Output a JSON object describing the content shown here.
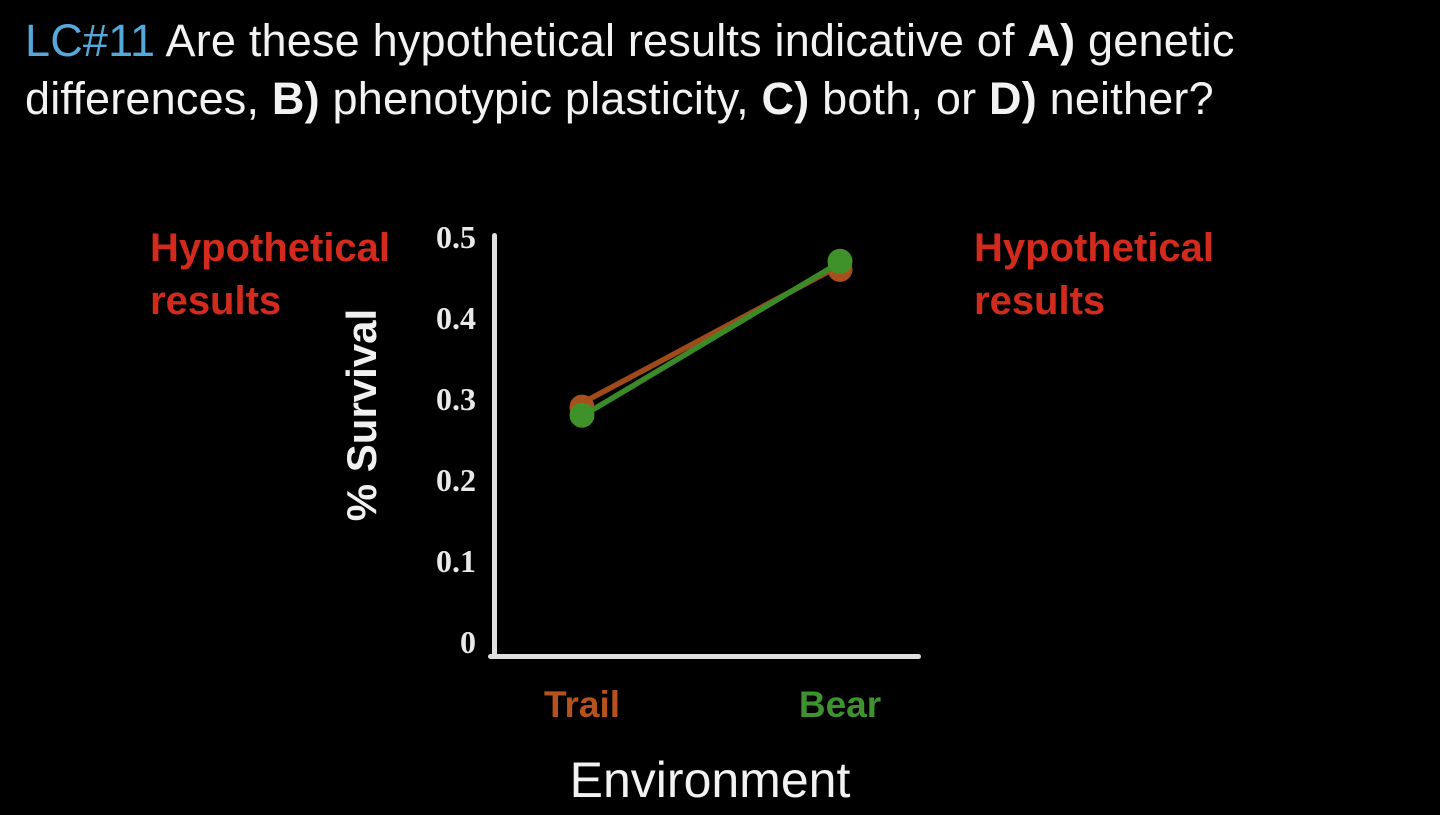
{
  "title": {
    "accent_color": "#54a8da",
    "lines": [
      [
        {
          "text": "LC#11",
          "style": "accent"
        },
        {
          "text": " Are these hypothetical results indicative of ",
          "style": "normal"
        },
        {
          "text": "A)",
          "style": "bold"
        },
        {
          "text": " genetic",
          "style": "normal"
        }
      ],
      [
        {
          "text": "differences, ",
          "style": "normal"
        },
        {
          "text": "B)",
          "style": "bold"
        },
        {
          "text": " phenotypic plasticity, ",
          "style": "normal"
        },
        {
          "text": "C)",
          "style": "bold"
        },
        {
          "text": " both, or ",
          "style": "normal"
        },
        {
          "text": "D)",
          "style": "bold"
        },
        {
          "text": " neither?",
          "style": "normal"
        }
      ]
    ]
  },
  "chart_data": {
    "type": "line",
    "categories": [
      "Trail",
      "Bear"
    ],
    "category_colors": [
      "#b5521e",
      "#3f9230"
    ],
    "series": [
      {
        "name": "orange-series",
        "line_color": "#9e4a1b",
        "marker_color": "#a8501d",
        "values": [
          0.29,
          0.46
        ]
      },
      {
        "name": "green-series",
        "line_color": "#3a8a27",
        "marker_color": "#3f9129",
        "values": [
          0.28,
          0.47
        ]
      }
    ],
    "xlabel": "Environment",
    "ylabel": "% Survival",
    "ylim": [
      0,
      0.5
    ],
    "yticks": [
      {
        "label": "0",
        "value": 0
      },
      {
        "label": "0.1",
        "value": 0.1
      },
      {
        "label": "0.2",
        "value": 0.2
      },
      {
        "label": "0.3",
        "value": 0.3
      },
      {
        "label": "0.4",
        "value": 0.4
      },
      {
        "label": "0.5",
        "value": 0.5
      }
    ],
    "grid": false,
    "legend": "none",
    "annotations": [
      {
        "text": "Hypothetical results",
        "color": "#d32a1e",
        "position": "left-of-plot"
      },
      {
        "text": "Hypothetical results",
        "color": "#d32a1e",
        "position": "right-of-plot"
      }
    ]
  },
  "colors": {
    "background": "#000000",
    "title_text": "#f2f2f2",
    "axis": "#e0e0e0",
    "tick_text": "#e9e9e9"
  }
}
